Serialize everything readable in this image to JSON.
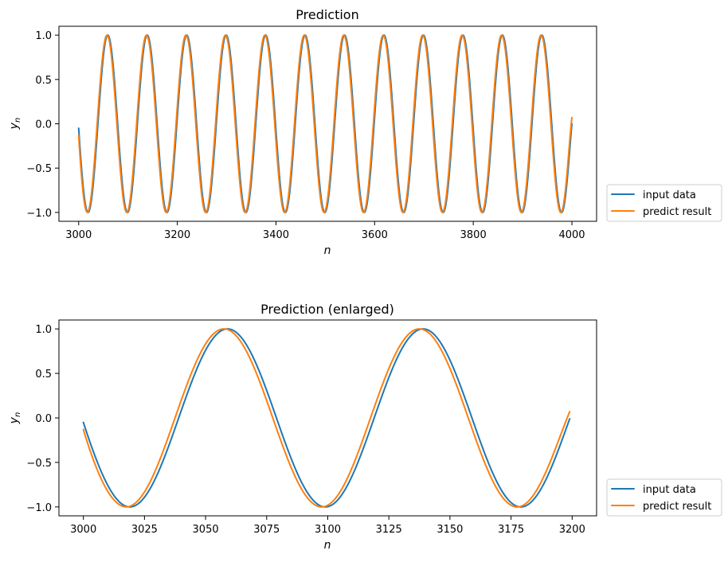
{
  "chart_data": [
    {
      "type": "line",
      "title": "Prediction",
      "xlabel": "n",
      "ylabel_base": "y",
      "ylabel_sub": "n",
      "xlim": [
        2960,
        4050
      ],
      "ylim": [
        -1.1,
        1.1
      ],
      "xticks": [
        3000,
        3200,
        3400,
        3600,
        3800,
        4000
      ],
      "yticks": [
        1.0,
        0.5,
        0.0,
        -0.5,
        -1.0
      ],
      "ytick_labels": [
        "1.0",
        "0.5",
        "0.0",
        "−0.5",
        "−1.0"
      ],
      "x_range": [
        3000,
        4000
      ],
      "period": 80,
      "legend_position": "outside-right",
      "series": [
        {
          "name": "input data",
          "color": "#1f77b4",
          "phase_shift": 0,
          "start_value": -0.05,
          "end_value": 0.0
        },
        {
          "name": "predict result",
          "color": "#ff7f0e",
          "phase_shift": 1.5,
          "start_value": -0.13,
          "end_value": 0.07
        }
      ]
    },
    {
      "type": "line",
      "title": "Prediction (enlarged)",
      "xlabel": "n",
      "ylabel_base": "y",
      "ylabel_sub": "n",
      "xlim": [
        2990,
        3210
      ],
      "ylim": [
        -1.1,
        1.1
      ],
      "xticks": [
        3000,
        3025,
        3050,
        3075,
        3100,
        3125,
        3150,
        3175,
        3200
      ],
      "yticks": [
        1.0,
        0.5,
        0.0,
        -0.5,
        -1.0
      ],
      "ytick_labels": [
        "1.0",
        "0.5",
        "0.0",
        "−0.5",
        "−1.0"
      ],
      "x_range": [
        3000,
        3199
      ],
      "period": 80,
      "legend_position": "outside-right",
      "series": [
        {
          "name": "input data",
          "color": "#1f77b4",
          "phase_shift": 0,
          "start_value": -0.05,
          "end_value": -0.01
        },
        {
          "name": "predict result",
          "color": "#ff7f0e",
          "phase_shift": 1.5,
          "start_value": -0.13,
          "end_value": 0.07
        }
      ]
    }
  ]
}
